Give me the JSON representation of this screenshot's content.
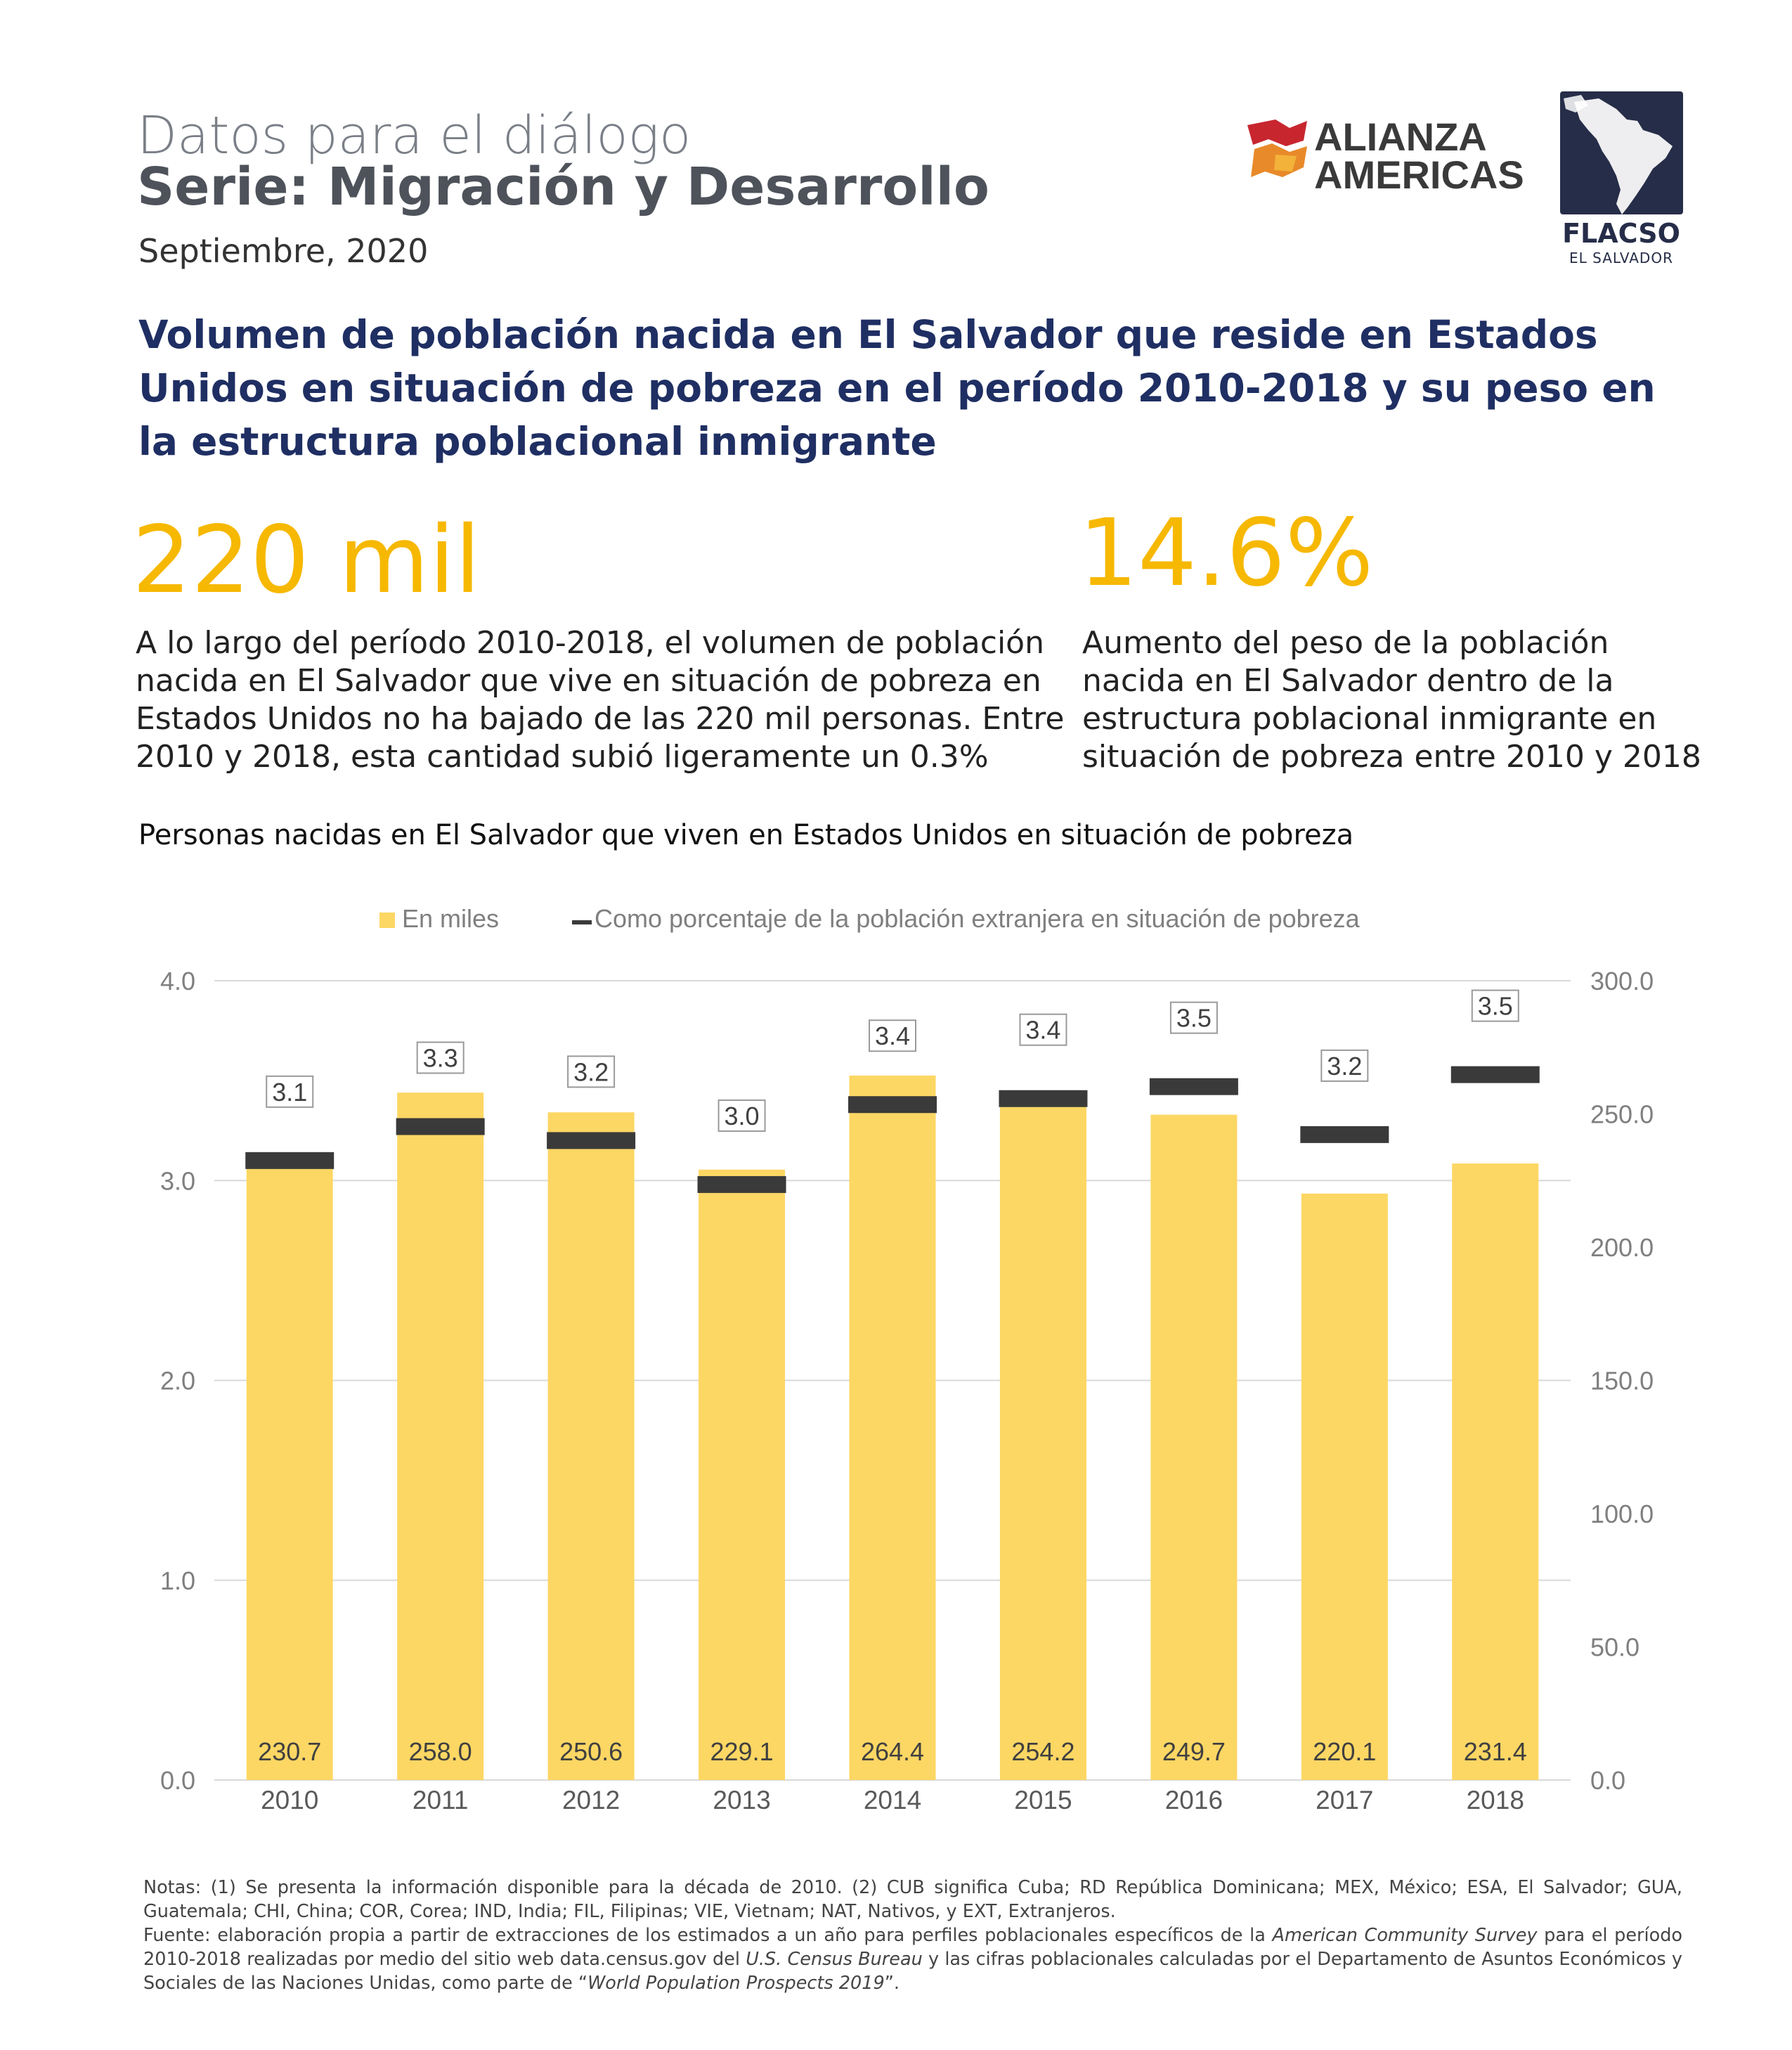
{
  "header": {
    "series_line1": "Datos para el diálogo",
    "series_line2": "Serie: Migración y Desarrollo",
    "date": "Septiembre, 2020"
  },
  "logos": {
    "alianza_line1": "ALIANZA",
    "alianza_line2": "AMERICAS",
    "flacso_name": "FLACSO",
    "flacso_sub": "EL SALVADOR"
  },
  "title": "Volumen de población nacida en El Salvador que reside en Estados Unidos en situación de pobreza en el período 2010-2018 y su peso en la estructura poblacional inmigrante",
  "highlights": [
    {
      "value": "220 mil",
      "text": "A lo largo del período 2010-2018, el volumen de población nacida en El Salvador que vive en situación de pobreza en Estados Unidos no ha bajado de las 220 mil personas. Entre 2010 y 2018, esta cantidad subió ligeramente un 0.3%"
    },
    {
      "value": "14.6%",
      "text": "Aumento del peso de la población nacida en El Salvador dentro de la estructura poblacional inmigrante en situación de pobreza entre 2010 y 2018"
    }
  ],
  "chart_title": "Personas nacidas en El Salvador que viven en Estados Unidos en situación de pobreza",
  "chart_data": {
    "type": "bar",
    "categories": [
      "2010",
      "2011",
      "2012",
      "2013",
      "2014",
      "2015",
      "2016",
      "2017",
      "2018"
    ],
    "series": [
      {
        "name": "En miles",
        "type": "bar",
        "axis": "right",
        "color": "#fdd764",
        "values": [
          230.7,
          258.0,
          250.6,
          229.1,
          264.4,
          254.2,
          249.7,
          220.1,
          231.4
        ],
        "labels": [
          "230.7",
          "258.0",
          "250.6",
          "229.1",
          "264.4",
          "254.2",
          "249.7",
          "220.1",
          "231.4"
        ]
      },
      {
        "name": "Como porcentaje de la población extranjera en situación de pobreza",
        "type": "marker",
        "axis": "left",
        "color": "#3a3a3a",
        "values": [
          3.1,
          3.27,
          3.2,
          2.98,
          3.38,
          3.41,
          3.47,
          3.23,
          3.53
        ],
        "labels": [
          "3.1",
          "3.3",
          "3.2",
          "3.0",
          "3.4",
          "3.4",
          "3.5",
          "3.2",
          "3.5"
        ]
      }
    ],
    "y_left": {
      "ticks": [
        "0.0",
        "1.0",
        "2.0",
        "3.0",
        "4.0"
      ],
      "ylim": [
        0,
        4
      ]
    },
    "y_right": {
      "ticks": [
        "0.0",
        "50.0",
        "100.0",
        "150.0",
        "200.0",
        "250.0",
        "300.0"
      ],
      "ylim": [
        0,
        300
      ]
    },
    "grid": true,
    "legend": "top-center"
  },
  "notes": {
    "n1": "Notas: (1) Se presenta la información disponible para la década de 2010. (2) CUB significa Cuba; RD República Dominicana; MEX, México; ESA, El Salvador; GUA, Guatemala; CHI, China; COR, Corea; IND, India; FIL, Filipinas; VIE, Vietnam; NAT, Nativos, y EXT, Extranjeros.",
    "f1": "Fuente: elaboración propia a partir de extracciones de los estimados a un año para perfiles poblacionales específicos de la",
    "f_acs": "American Community Survey",
    "f2": "para el período 2010-2018 realizadas por medio del sitio web data.census.gov del",
    "f_bureau": "U.S. Census Bureau",
    "f3": "y las cifras poblacionales calculadas por el Departamento de Asuntos Económicos y Sociales de las Naciones Unidas, como parte de “",
    "f_wpp": "World Population Prospects 2019",
    "f4": "”."
  }
}
